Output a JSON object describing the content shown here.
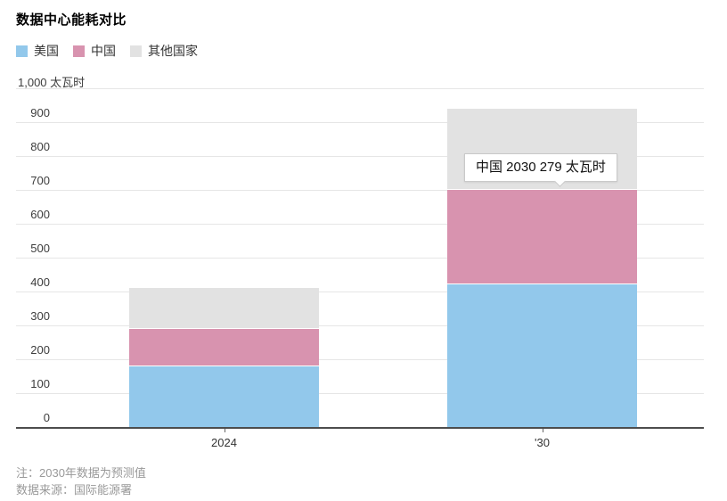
{
  "title": "数据中心能耗对比",
  "legend": [
    {
      "label": "美国",
      "color": "#92C8EB"
    },
    {
      "label": "中国",
      "color": "#D893AF"
    },
    {
      "label": "其他国家",
      "color": "#E2E2E2"
    }
  ],
  "y_axis": {
    "top_label": "1,000 太瓦时",
    "ticks": [
      "900",
      "800",
      "700",
      "600",
      "500",
      "400",
      "300",
      "200",
      "100",
      "0"
    ]
  },
  "x_axis": {
    "labels": [
      "2024",
      "'30"
    ]
  },
  "tooltip": {
    "text": "中国 2030 279 太瓦时"
  },
  "notes": [
    "注：2030年数据为预测值",
    "数据来源：国际能源署"
  ],
  "chart_data": {
    "type": "bar",
    "stacked": true,
    "title": "数据中心能耗对比",
    "categories": [
      "2024",
      "'30"
    ],
    "series": [
      {
        "name": "美国",
        "color": "#92C8EB",
        "values": [
          180,
          420
        ]
      },
      {
        "name": "中国",
        "color": "#D893AF",
        "values": [
          110,
          279
        ]
      },
      {
        "name": "其他国家",
        "color": "#E2E2E2",
        "values": [
          120,
          240
        ]
      }
    ],
    "xlabel": "",
    "ylabel": "太瓦时",
    "ylim": [
      0,
      1000
    ],
    "y_tick_step": 100,
    "grid": true,
    "legend_position": "top",
    "annotation": "中国 2030 279 太瓦时",
    "note": "注：2030年数据为预测值",
    "source": "数据来源：国际能源署"
  }
}
